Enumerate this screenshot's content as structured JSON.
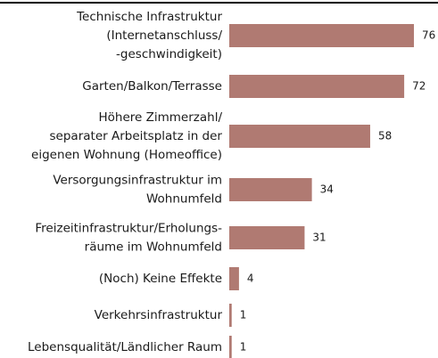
{
  "chart_data": {
    "type": "bar",
    "orientation": "horizontal",
    "color": "#b07a72",
    "categories": [
      [
        "Technische Infrastruktur",
        "(Internetanschluss/",
        "-geschwindigkeit)"
      ],
      [
        "Garten/Balkon/Terrasse"
      ],
      [
        "Höhere Zimmerzahl/",
        "separater  Arbeitsplatz in der",
        "eigenen Wohnung (Homeoffice)"
      ],
      [
        "Versorgungsinfrastruktur im",
        "Wohnumfeld"
      ],
      [
        "Freizeitinfrastruktur/Erholungs-",
        "räume im Wohnumfeld"
      ],
      [
        "(Noch) Keine Effekte"
      ],
      [
        "Verkehrsinfrastruktur"
      ],
      [
        "Lebensqualität/Ländlicher Raum"
      ]
    ],
    "values": [
      76,
      72,
      58,
      34,
      31,
      4,
      1,
      1
    ]
  }
}
